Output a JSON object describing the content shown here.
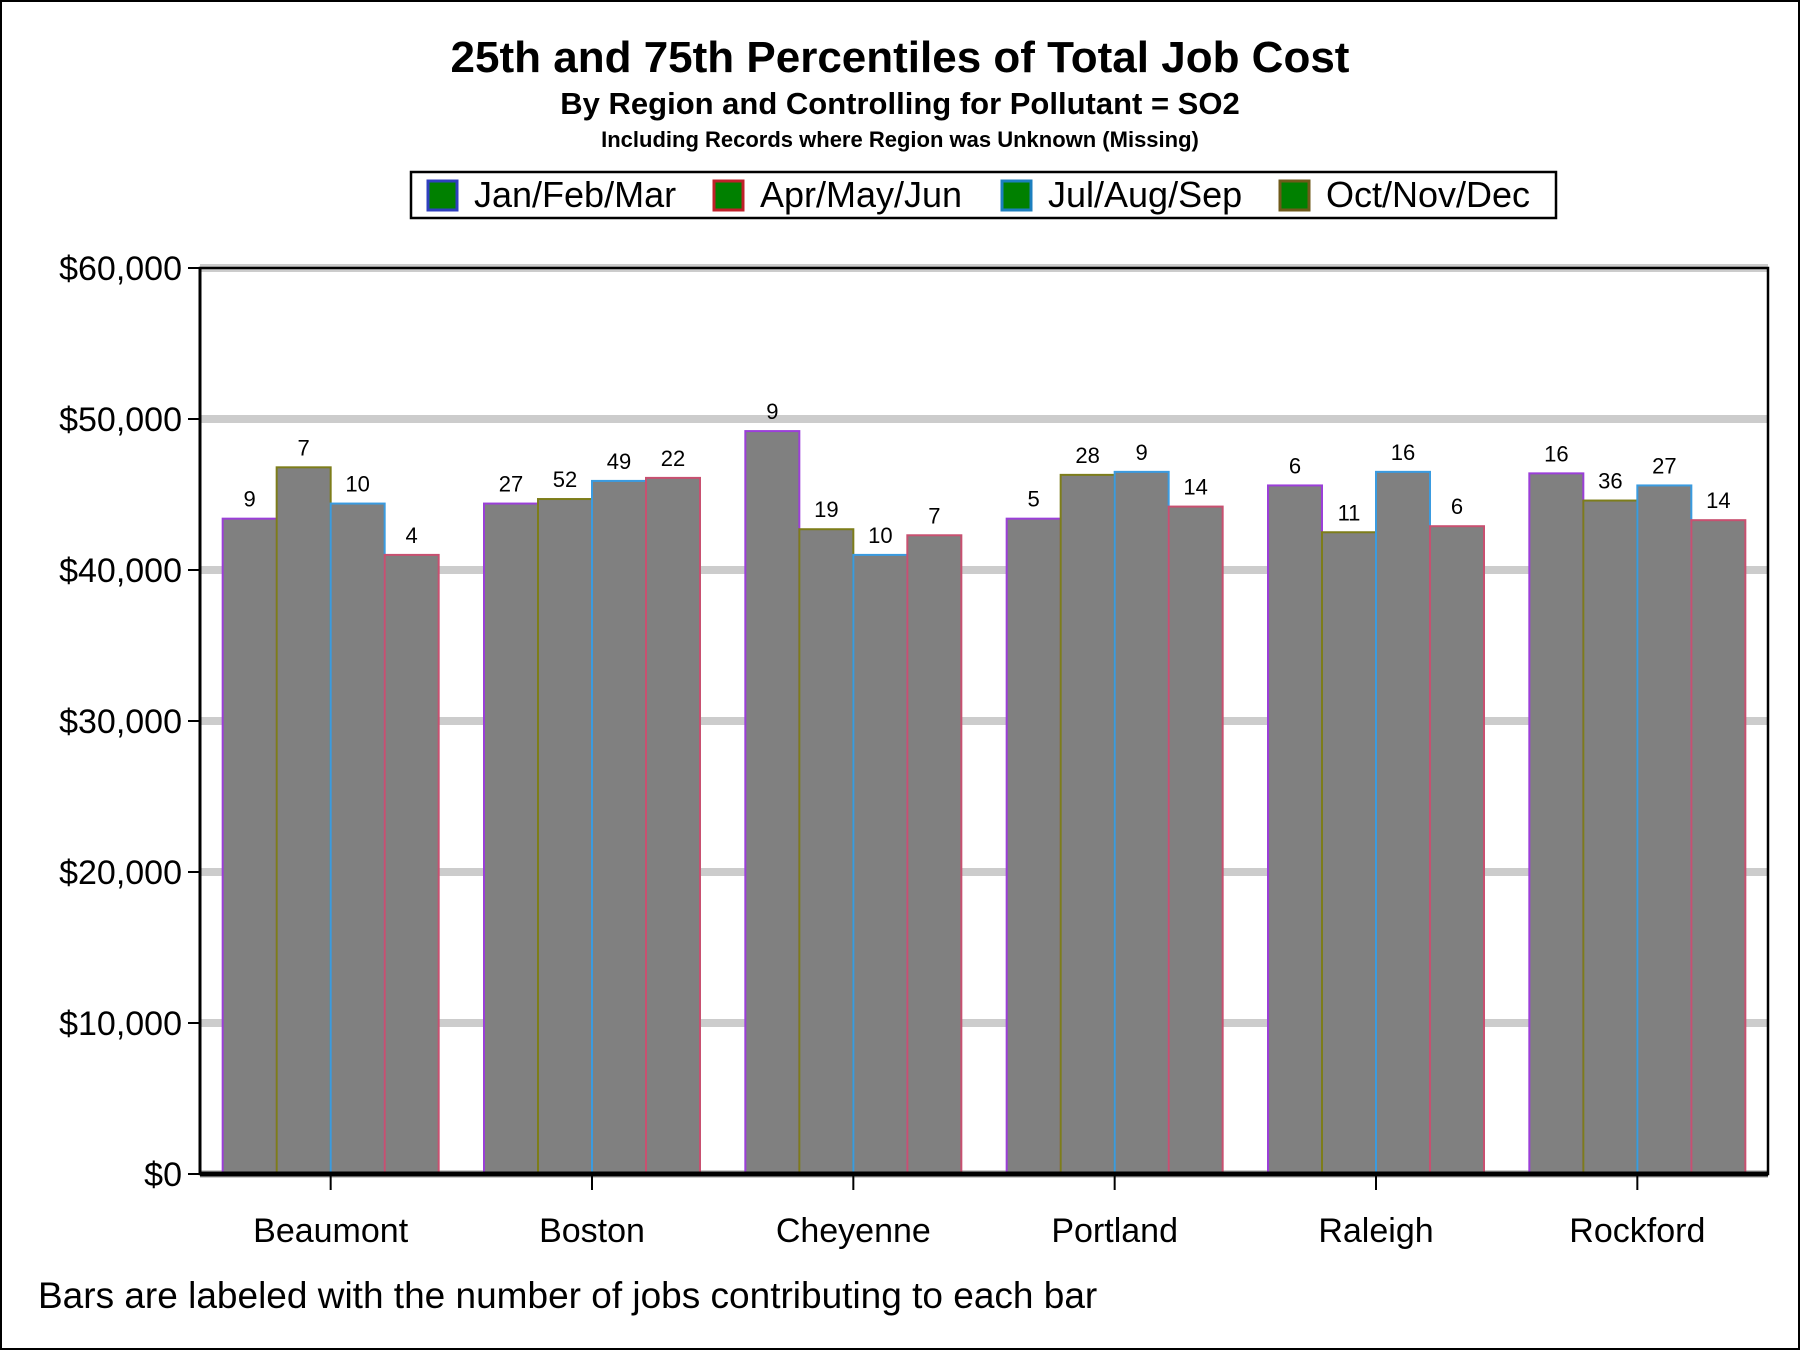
{
  "chart_data": {
    "type": "bar",
    "title": "25th and 75th Percentiles of Total Job Cost",
    "subtitle": "By Region and Controlling for Pollutant = SO2",
    "subtitle2": "Including Records where Region was Unknown (Missing)",
    "xlabel": "",
    "ylabel": "",
    "ylim": [
      0,
      60000
    ],
    "yticks": [
      0,
      10000,
      20000,
      30000,
      40000,
      50000,
      60000
    ],
    "ytick_labels": [
      "$0",
      "$10,000",
      "$20,000",
      "$30,000",
      "$40,000",
      "$50,000",
      "$60,000"
    ],
    "grid": true,
    "legend_position": "top-center",
    "categories": [
      "Beaumont",
      "Boston",
      "Cheyenne",
      "Portland",
      "Raleigh",
      "Rockford"
    ],
    "series": [
      {
        "name": "Jan/Feb/Mar",
        "swatch_fill": "#008000",
        "swatch_border": "#2f3fbf",
        "bar_outline": "#9b3fd8",
        "values": [
          43400,
          44400,
          49200,
          43400,
          45600,
          46400
        ],
        "labels": [
          "9",
          "27",
          "9",
          "5",
          "6",
          "16"
        ]
      },
      {
        "name": "Apr/May/Jun",
        "swatch_fill": "#008000",
        "swatch_border": "#c0202a",
        "bar_outline": "#7d7d1a",
        "values": [
          46800,
          44700,
          42700,
          46300,
          42500,
          44600
        ],
        "labels": [
          "7",
          "52",
          "19",
          "28",
          "11",
          "36"
        ]
      },
      {
        "name": "Jul/Aug/Sep",
        "swatch_fill": "#008000",
        "swatch_border": "#1c7fbf",
        "bar_outline": "#3a9be0",
        "values": [
          44400,
          45900,
          41000,
          46500,
          46500,
          45600
        ],
        "labels": [
          "10",
          "49",
          "10",
          "9",
          "16",
          "27"
        ]
      },
      {
        "name": "Oct/Nov/Dec",
        "swatch_fill": "#008000",
        "swatch_border": "#6f5a1a",
        "bar_outline": "#c85070",
        "values": [
          41000,
          46100,
          42300,
          44200,
          42900,
          43300
        ],
        "labels": [
          "4",
          "22",
          "7",
          "14",
          "6",
          "14"
        ]
      }
    ],
    "bar_fill": "#808080",
    "footnote": "Bars are labeled with the number of jobs contributing to each bar"
  }
}
